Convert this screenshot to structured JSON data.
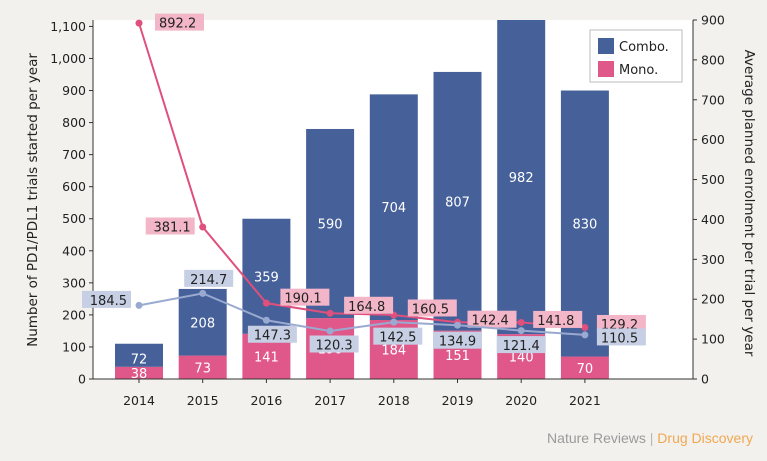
{
  "chart_data": {
    "type": "bar+line",
    "categories": [
      "2014",
      "2015",
      "2016",
      "2017",
      "2018",
      "2019",
      "2020",
      "2021"
    ],
    "stacked_bars": [
      {
        "name": "Mono.",
        "color": "#e0588a",
        "values": [
          38,
          73,
          141,
          190,
          184,
          151,
          140,
          70
        ]
      },
      {
        "name": "Combo.",
        "color": "#46609a",
        "values": [
          72,
          208,
          359,
          590,
          704,
          807,
          982,
          830
        ]
      }
    ],
    "lines": [
      {
        "name": "Mono. average planned enrolment",
        "color": "#e0507c",
        "label_bg": "#f2b6c8",
        "values": [
          892.2,
          381.1,
          190.1,
          164.8,
          160.5,
          142.4,
          141.8,
          129.2
        ]
      },
      {
        "name": "Combo. average planned enrolment",
        "color": "#9aa9d0",
        "label_bg": "#c6cfe4",
        "values": [
          184.5,
          214.7,
          147.3,
          120.3,
          142.5,
          134.9,
          121.4,
          110.5
        ]
      }
    ],
    "y_left": {
      "label": "Number of PD1/PDL1 trials started per year",
      "range": [
        0,
        1120
      ],
      "ticks": [
        0,
        100,
        200,
        300,
        400,
        500,
        600,
        700,
        800,
        900,
        1000,
        1100
      ],
      "tick_labels": [
        "0",
        "100",
        "200",
        "300",
        "400",
        "500",
        "600",
        "700",
        "800",
        "900",
        "1,000",
        "1,100"
      ]
    },
    "y_right": {
      "label": "Average planned enrolment per trial per year",
      "range": [
        0,
        900
      ],
      "ticks": [
        0,
        100,
        200,
        300,
        400,
        500,
        600,
        700,
        800,
        900
      ],
      "tick_labels": [
        "0",
        "100",
        "200",
        "300",
        "400",
        "500",
        "600",
        "700",
        "800",
        "900"
      ]
    },
    "legend": [
      {
        "label": "Combo.",
        "color": "#46609a"
      },
      {
        "label": "Mono.",
        "color": "#e0588a"
      }
    ],
    "legend_position": "top-right"
  },
  "footer": {
    "publisher": "Nature Reviews",
    "separator": "|",
    "journal": "Drug Discovery"
  }
}
